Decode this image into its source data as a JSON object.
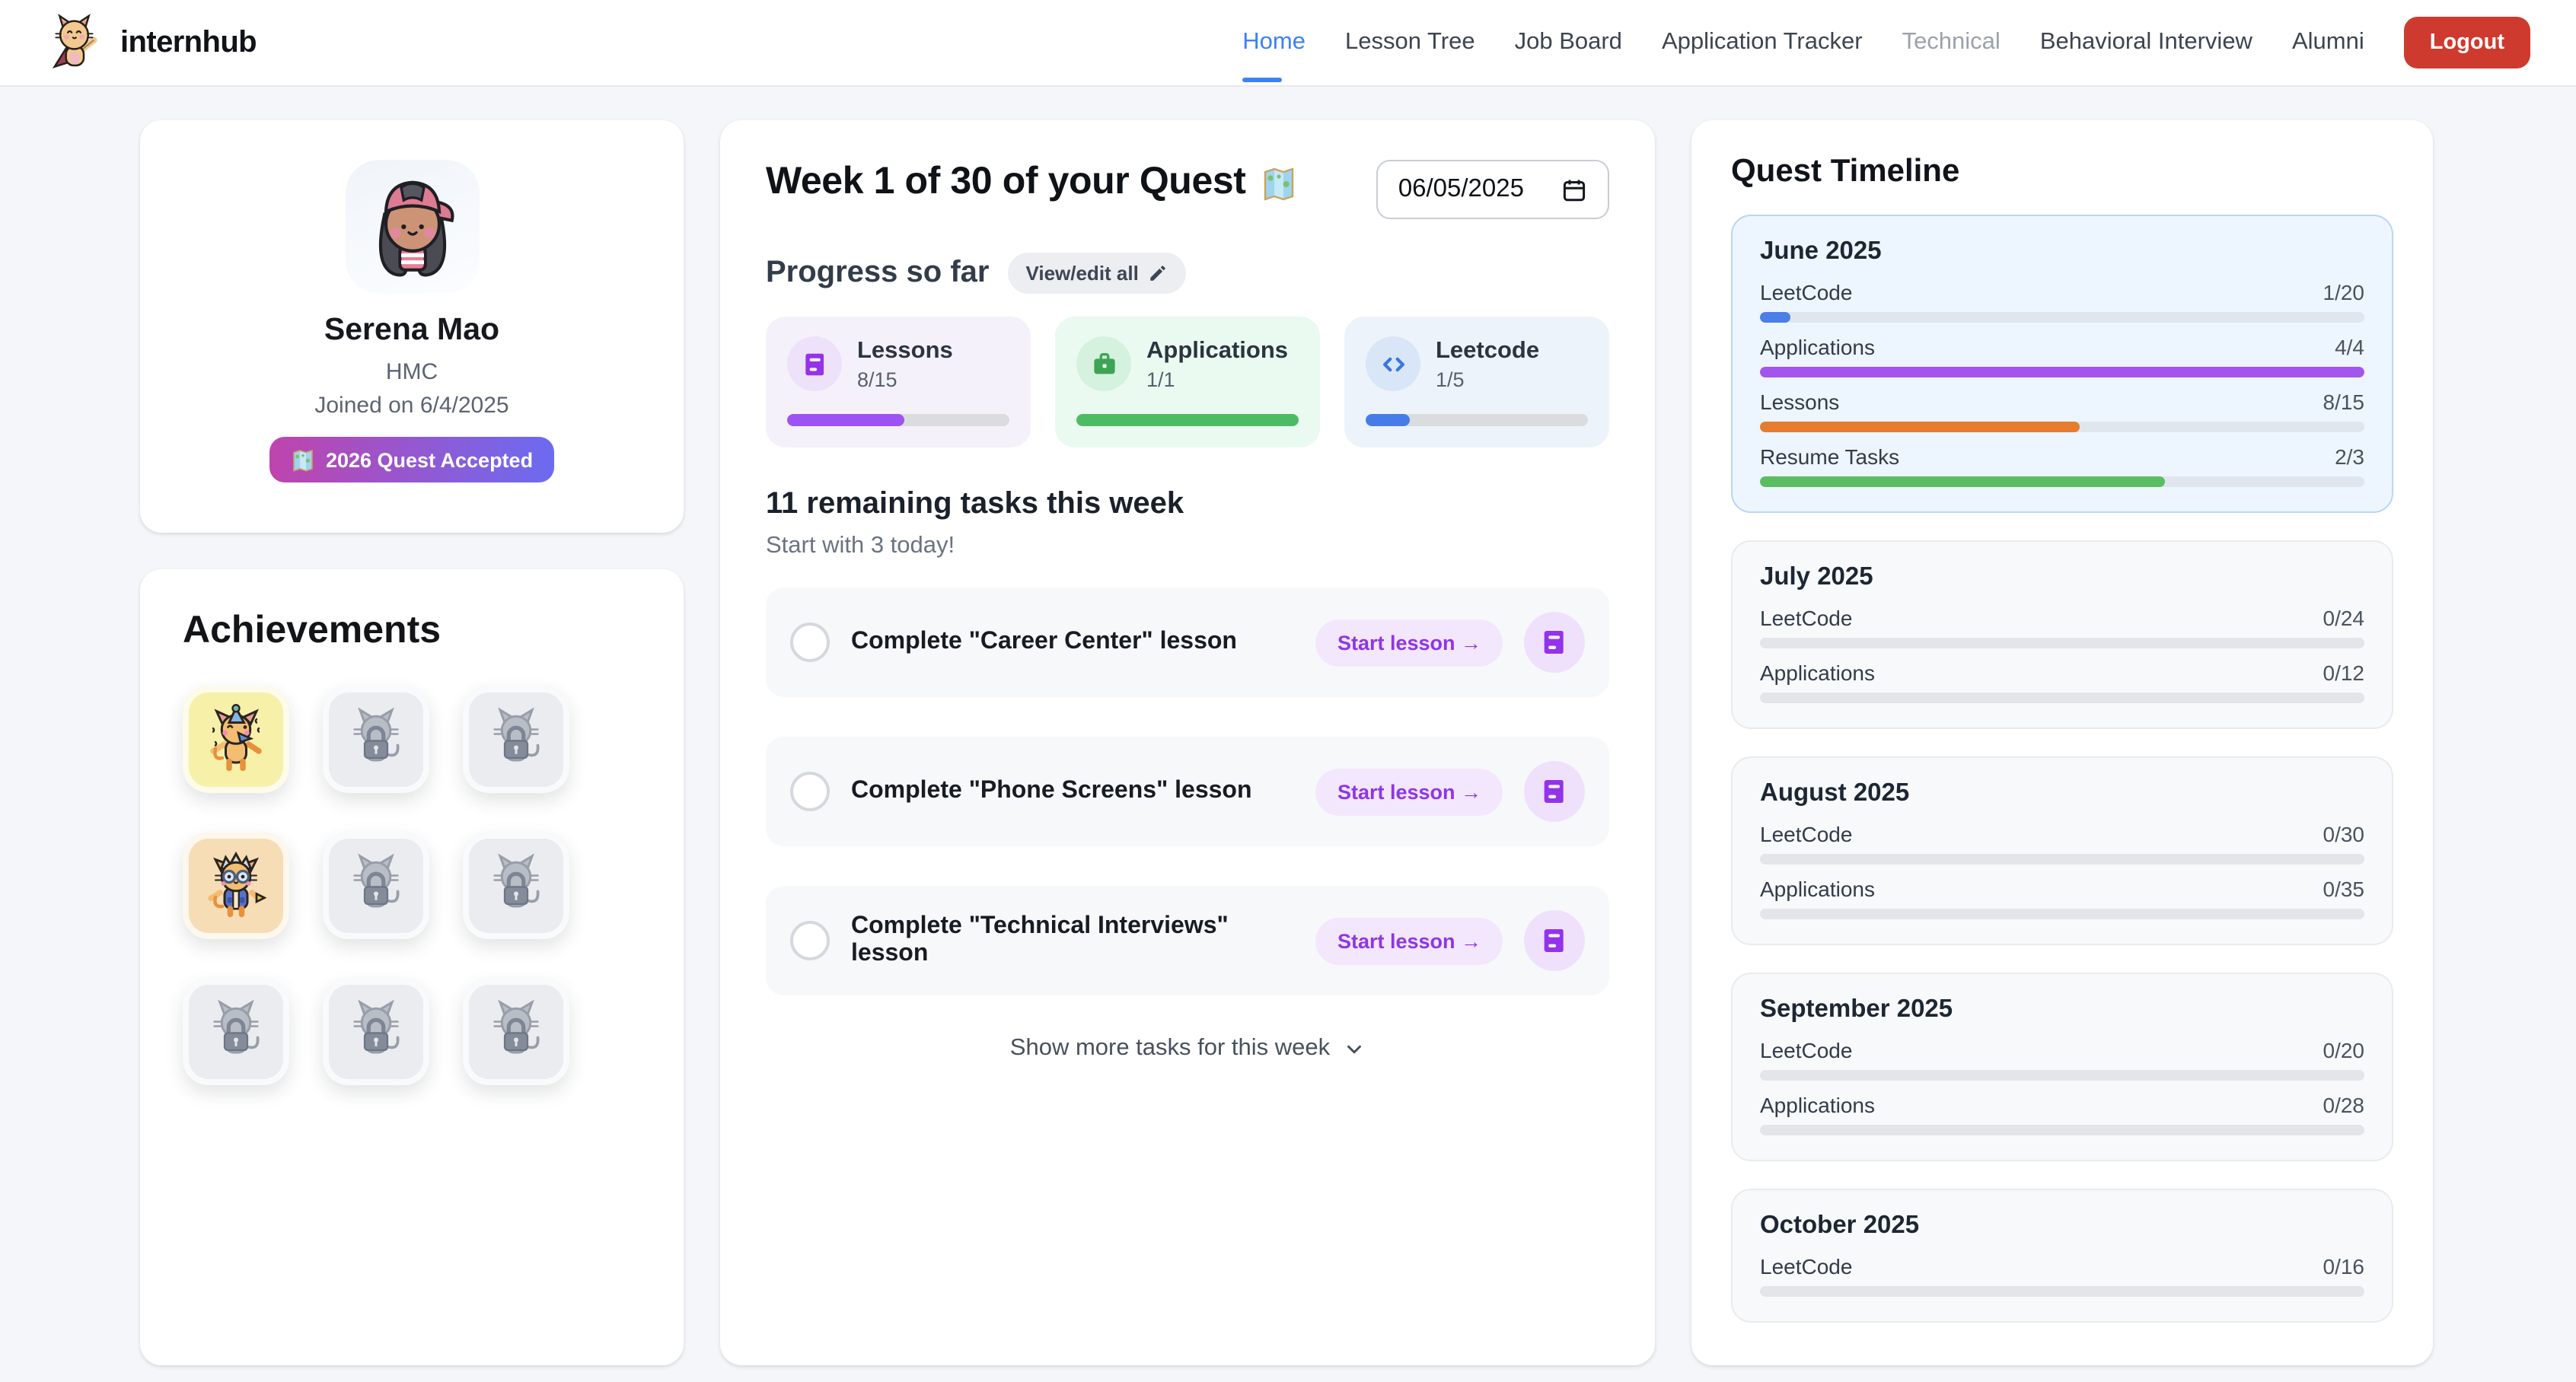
{
  "colors": {
    "page_bg": "#f5f6f9",
    "accent_blue": "#3b82f6",
    "logout_red": "#ce3a2e",
    "badge_gradient_from": "#bf44ad",
    "badge_gradient_to": "#6b6bf2"
  },
  "header": {
    "brand": "internhub",
    "logo_icon": "cat-superhero-logo",
    "nav": [
      {
        "label": "Home",
        "state": "active"
      },
      {
        "label": "Lesson Tree"
      },
      {
        "label": "Job Board"
      },
      {
        "label": "Application Tracker"
      },
      {
        "label": "Technical",
        "state": "disabled"
      },
      {
        "label": "Behavioral Interview"
      },
      {
        "label": "Alumni"
      }
    ],
    "logout": "Logout"
  },
  "profile": {
    "avatar": "girl-with-pink-backwards-cap",
    "name": "Serena Mao",
    "school": "HMC",
    "joined": "Joined on 6/4/2025",
    "badge": {
      "icon": "world-map-emoji",
      "label": "2026 Quest Accepted"
    }
  },
  "achievements": {
    "title": "Achievements",
    "tiles": [
      {
        "unlocked": true,
        "variant": "party-cat",
        "bg": "#f7f0a9"
      },
      {
        "unlocked": false,
        "variant": "locked-cat"
      },
      {
        "unlocked": false,
        "variant": "locked-cat"
      },
      {
        "unlocked": true,
        "variant": "wizard-cat",
        "bg": "#f6ddb6"
      },
      {
        "unlocked": false,
        "variant": "locked-cat"
      },
      {
        "unlocked": false,
        "variant": "locked-cat"
      },
      {
        "unlocked": false,
        "variant": "locked-cat"
      },
      {
        "unlocked": false,
        "variant": "locked-cat"
      },
      {
        "unlocked": false,
        "variant": "locked-cat"
      }
    ]
  },
  "main": {
    "title": "Week 1 of 30 of your Quest",
    "title_icon": "world-map-emoji",
    "date_value": "06/05/2025",
    "progress": {
      "heading": "Progress so far",
      "edit_button": "View/edit all",
      "edit_icon": "pencil-emoji",
      "cards": [
        {
          "label": "Lessons",
          "value": "8/15",
          "pct": 53,
          "icon": "i-book",
          "icon_name": "book-icon",
          "bg": "#f5f1fb",
          "icon_bg": "#eee1fa",
          "icon_color": "#9333ea",
          "bar": "#9d53f2"
        },
        {
          "label": "Applications",
          "value": "1/1",
          "pct": 100,
          "icon": "i-briefcase",
          "icon_name": "briefcase-icon",
          "bg": "#eafaf0",
          "icon_bg": "#d4f2de",
          "icon_color": "#3da456",
          "bar": "#4cbb63"
        },
        {
          "label": "Leetcode",
          "value": "1/5",
          "pct": 20,
          "icon": "i-code",
          "icon_name": "code-icon",
          "bg": "#ecf3fb",
          "icon_bg": "#d8e6f8",
          "icon_color": "#3b76e0",
          "bar": "#477ce8"
        }
      ]
    },
    "tasks": {
      "heading": "11 remaining tasks this week",
      "subheading": "Start with 3 today!",
      "action_label": "Start lesson →",
      "action_icon": "book-icon",
      "items": [
        "Complete \"Career Center\" lesson",
        "Complete \"Phone Screens\" lesson",
        "Complete \"Technical Interviews\" lesson"
      ]
    },
    "show_more": "Show more tasks for this week"
  },
  "timeline": {
    "title": "Quest Timeline",
    "months": [
      {
        "name": "June 2025",
        "highlight": true,
        "metrics": [
          {
            "label": "LeetCode",
            "value": "1/20",
            "pct": 5,
            "color": "#4b7ee8"
          },
          {
            "label": "Applications",
            "value": "4/4",
            "pct": 100,
            "color": "#a455ee"
          },
          {
            "label": "Lessons",
            "value": "8/15",
            "pct": 53,
            "color": "#e87c2e"
          },
          {
            "label": "Resume Tasks",
            "value": "2/3",
            "pct": 67,
            "color": "#5bbd62"
          }
        ]
      },
      {
        "name": "July 2025",
        "metrics": [
          {
            "label": "LeetCode",
            "value": "0/24",
            "pct": 0
          },
          {
            "label": "Applications",
            "value": "0/12",
            "pct": 0
          }
        ]
      },
      {
        "name": "August 2025",
        "metrics": [
          {
            "label": "LeetCode",
            "value": "0/30",
            "pct": 0
          },
          {
            "label": "Applications",
            "value": "0/35",
            "pct": 0
          }
        ]
      },
      {
        "name": "September 2025",
        "metrics": [
          {
            "label": "LeetCode",
            "value": "0/20",
            "pct": 0
          },
          {
            "label": "Applications",
            "value": "0/28",
            "pct": 0
          }
        ]
      },
      {
        "name": "October 2025",
        "metrics": [
          {
            "label": "LeetCode",
            "value": "0/16",
            "pct": 0
          }
        ]
      }
    ]
  }
}
